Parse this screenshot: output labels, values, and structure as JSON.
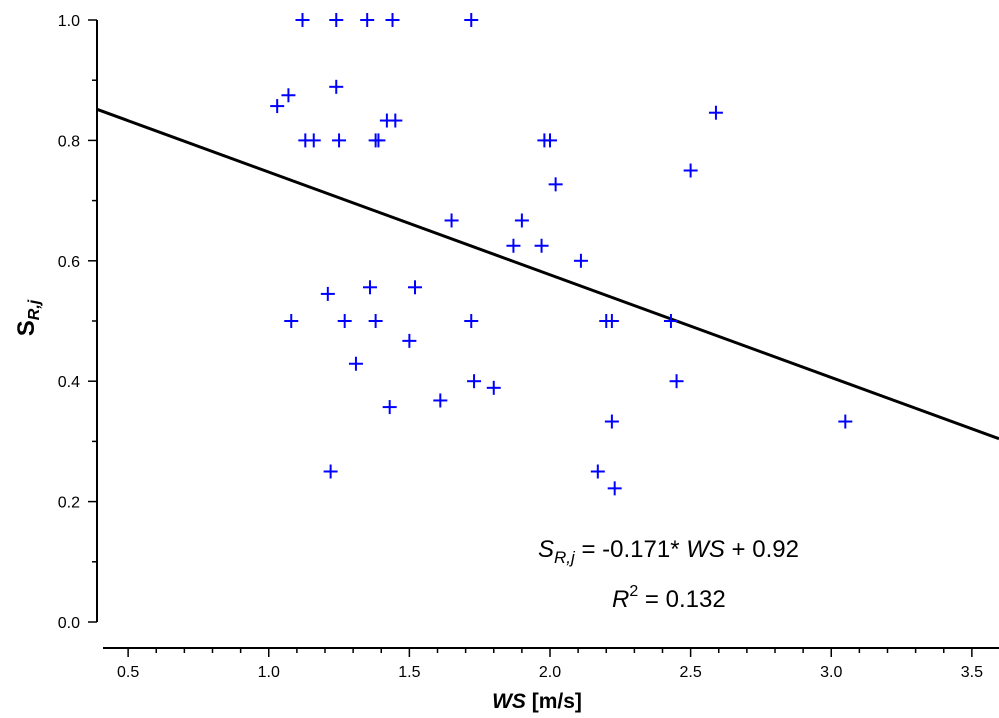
{
  "chart_data": {
    "type": "scatter",
    "colors": {
      "points": "#0000ff",
      "fit_line": "#000000",
      "axes": "#000000"
    },
    "x_axis": {
      "label_main": "WS",
      "label_unit": "[m/s]",
      "xlim": [
        0.4,
        3.6
      ],
      "ticks": [
        "0.5",
        "1.0",
        "1.5",
        "2.0",
        "2.5",
        "3.0",
        "3.5"
      ],
      "tick_values": [
        0.5,
        1.0,
        1.5,
        2.0,
        2.5,
        3.0,
        3.5
      ],
      "minor_step": 0.1
    },
    "y_axis": {
      "label_main": "S",
      "label_sub": "R,j",
      "ylim": [
        0.0,
        1.0
      ],
      "ticks": [
        "0.0",
        "0.2",
        "0.4",
        "0.6",
        "0.8",
        "1.0"
      ],
      "tick_values": [
        0.0,
        0.2,
        0.4,
        0.6,
        0.8,
        1.0
      ],
      "minor_step": 0.1
    },
    "points": [
      {
        "x": 1.12,
        "y": 1.0
      },
      {
        "x": 1.24,
        "y": 1.0
      },
      {
        "x": 1.35,
        "y": 1.0
      },
      {
        "x": 1.44,
        "y": 1.0
      },
      {
        "x": 1.72,
        "y": 1.0
      },
      {
        "x": 1.03,
        "y": 0.857
      },
      {
        "x": 1.07,
        "y": 0.875
      },
      {
        "x": 1.24,
        "y": 0.889
      },
      {
        "x": 1.13,
        "y": 0.8
      },
      {
        "x": 1.16,
        "y": 0.8
      },
      {
        "x": 1.25,
        "y": 0.8
      },
      {
        "x": 1.38,
        "y": 0.8
      },
      {
        "x": 1.39,
        "y": 0.8
      },
      {
        "x": 1.42,
        "y": 0.833
      },
      {
        "x": 1.45,
        "y": 0.833
      },
      {
        "x": 1.98,
        "y": 0.8
      },
      {
        "x": 2.0,
        "y": 0.8
      },
      {
        "x": 2.59,
        "y": 0.846
      },
      {
        "x": 2.02,
        "y": 0.727
      },
      {
        "x": 2.5,
        "y": 0.75
      },
      {
        "x": 1.65,
        "y": 0.667
      },
      {
        "x": 1.9,
        "y": 0.667
      },
      {
        "x": 1.87,
        "y": 0.625
      },
      {
        "x": 1.97,
        "y": 0.625
      },
      {
        "x": 2.11,
        "y": 0.6
      },
      {
        "x": 1.21,
        "y": 0.545
      },
      {
        "x": 1.36,
        "y": 0.556
      },
      {
        "x": 1.52,
        "y": 0.556
      },
      {
        "x": 1.08,
        "y": 0.5
      },
      {
        "x": 1.27,
        "y": 0.5
      },
      {
        "x": 1.38,
        "y": 0.5
      },
      {
        "x": 1.72,
        "y": 0.5
      },
      {
        "x": 2.2,
        "y": 0.5
      },
      {
        "x": 2.22,
        "y": 0.5
      },
      {
        "x": 2.43,
        "y": 0.5
      },
      {
        "x": 1.5,
        "y": 0.467
      },
      {
        "x": 1.31,
        "y": 0.429
      },
      {
        "x": 1.73,
        "y": 0.4
      },
      {
        "x": 1.8,
        "y": 0.389
      },
      {
        "x": 2.45,
        "y": 0.4
      },
      {
        "x": 1.61,
        "y": 0.368
      },
      {
        "x": 1.43,
        "y": 0.357
      },
      {
        "x": 2.22,
        "y": 0.333
      },
      {
        "x": 3.05,
        "y": 0.333
      },
      {
        "x": 1.22,
        "y": 0.25
      },
      {
        "x": 2.17,
        "y": 0.25
      },
      {
        "x": 2.23,
        "y": 0.222
      }
    ],
    "fit": {
      "slope": -0.171,
      "intercept": 0.92
    },
    "annotations": {
      "equation_lhs_main": "S",
      "equation_lhs_sub": "R,j",
      "equation_eq": " = ",
      "equation_value": "-0.171* ",
      "equation_var": "WS",
      "equation_plus": " + ",
      "equation_intercept": "0.92",
      "r2_main": "R",
      "r2_sup": "2",
      "r2_rest": " = 0.132"
    }
  }
}
